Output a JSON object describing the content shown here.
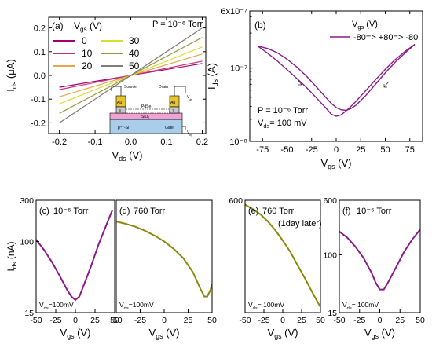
{
  "chart_data": [
    {
      "panel": "(a)",
      "type": "line",
      "annotation": "P = 10⁻⁶ Torr",
      "xlabel": "V",
      "xlabel_sub": "ds",
      "xlabel_unit": " (V)",
      "ylabel": "I",
      "ylabel_sub": "ds",
      "ylabel_unit": " (μA)",
      "xlim": [
        -0.23,
        0.21
      ],
      "ylim": [
        -0.245,
        0.245
      ],
      "xticks": [
        -0.2,
        -0.1,
        0.0,
        0.1,
        0.2
      ],
      "xtick_labels": [
        "-0.2",
        "-0.1",
        "0.0",
        "0.1",
        "0.2"
      ],
      "yticks": [
        -0.2,
        -0.1,
        0.0,
        0.1,
        0.2
      ],
      "ytick_labels": [
        "-0.2",
        "-0.1",
        "0.0",
        "0.1",
        "0.2"
      ],
      "legend_title": "V",
      "legend_title_sub": "gs",
      "legend_title_unit": " (V)",
      "series": [
        {
          "name": "0",
          "color": "#a0006e",
          "x": [
            -0.2,
            0.2
          ],
          "y": [
            -0.05,
            0.05
          ]
        },
        {
          "name": "10",
          "color": "#c5357c",
          "x": [
            -0.2,
            0.2
          ],
          "y": [
            -0.06,
            0.06
          ]
        },
        {
          "name": "20",
          "color": "#e6a64a",
          "x": [
            -0.2,
            0.2
          ],
          "y": [
            -0.09,
            0.09
          ]
        },
        {
          "name": "30",
          "color": "#d7df2a",
          "x": [
            -0.2,
            0.2
          ],
          "y": [
            -0.12,
            0.12
          ]
        },
        {
          "name": "40",
          "color": "#98993e",
          "x": [
            -0.2,
            0.2
          ],
          "y": [
            -0.16,
            0.16
          ]
        },
        {
          "name": "50",
          "color": "#7d7d7d",
          "x": [
            -0.2,
            0.2
          ],
          "y": [
            -0.2,
            0.2
          ]
        }
      ],
      "inset": {
        "source": "Source",
        "drain": "Drain",
        "au": "Au",
        "ti": "Ti",
        "film": "PdSe₂",
        "sio2": "SiO₂",
        "substrate": "p⁺⁺-Si",
        "gate": "Gate",
        "vds": "V",
        "vds_sub": "ds",
        "vbg": "V",
        "vbg_sub": "bg"
      }
    },
    {
      "panel": "(b)",
      "type": "line",
      "yscale": "log",
      "legend_title": "V",
      "legend_title_sub": "gs",
      "legend_title_unit": " (V)",
      "legend_entry": "-80=> +80=> -80",
      "annotation_p": "P = 10⁻⁶ Torr",
      "annotation_v": "V",
      "annotation_v_sub": "ds",
      "annotation_v_rest": "= 100 mV",
      "xlabel": "V",
      "xlabel_sub": "gs",
      "xlabel_unit": " (V)",
      "ylabel": "I",
      "ylabel_sub": "ds",
      "ylabel_unit": " (A)",
      "xlim": [
        -88,
        88
      ],
      "ylim": [
        1e-08,
        6e-07
      ],
      "xticks": [
        -75,
        -50,
        -25,
        0,
        25,
        50,
        75
      ],
      "xtick_labels": [
        "-75",
        "-50",
        "-25",
        "0",
        "25",
        "50",
        "75"
      ],
      "yticks": [
        1e-08,
        1e-07,
        6e-07
      ],
      "ytick_labels": [
        "10⁻⁸",
        "10⁻⁷",
        "6x10⁻⁷"
      ],
      "series": [
        {
          "name": "-80 to +80",
          "color": "#8b1a8b",
          "x": [
            -80,
            -70,
            -60,
            -50,
            -40,
            -30,
            -20,
            -10,
            -5,
            0,
            5,
            10,
            15,
            20,
            30,
            40,
            50,
            60,
            70,
            80
          ],
          "y": [
            2e-07,
            1.6e-07,
            1.25e-07,
            9.5e-08,
            7.2e-08,
            5.4e-08,
            3.9e-08,
            2.8e-08,
            2.35e-08,
            2.2e-08,
            2.3e-08,
            2.6e-08,
            3e-08,
            3.5e-08,
            4.9e-08,
            6.9e-08,
            9.6e-08,
            1.3e-07,
            1.68e-07,
            2.1e-07
          ]
        },
        {
          "name": "+80 to -80",
          "color": "#8b1a8b",
          "x": [
            80,
            70,
            60,
            50,
            40,
            30,
            20,
            15,
            10,
            5,
            0,
            -5,
            -10,
            -20,
            -30,
            -40,
            -50,
            -60,
            -70,
            -80
          ],
          "y": [
            2.1e-07,
            1.6e-07,
            1.2e-07,
            8.6e-08,
            6e-08,
            4.2e-08,
            3.1e-08,
            2.8e-08,
            2.65e-08,
            2.7e-08,
            2.9e-08,
            3.3e-08,
            3.9e-08,
            5.5e-08,
            7.7e-08,
            1.03e-07,
            1.32e-07,
            1.62e-07,
            1.85e-07,
            2e-07
          ]
        }
      ]
    },
    {
      "panel": "(c)",
      "type": "line",
      "yscale": "log",
      "annotation": "10⁻⁶ Torr",
      "vds_label": "V",
      "vds_sub": "ds",
      "vds_value": "=100mV",
      "xlabel": "V",
      "xlabel_sub": "gs",
      "xlabel_unit": " (V)",
      "ylabel": "I",
      "ylabel_sub": "ds",
      "ylabel_unit": " (nA)",
      "xlim": [
        -50,
        50
      ],
      "ylim": [
        15,
        300
      ],
      "xticks": [
        -50,
        -25,
        0,
        25,
        50
      ],
      "xtick_labels": [
        "-50",
        "-25",
        "0",
        "25",
        "50"
      ],
      "yticks": [
        15,
        100,
        300
      ],
      "ytick_labels": [
        "15",
        "100",
        "300"
      ],
      "series": [
        {
          "name": "10⁻⁶ Torr",
          "color": "#8b1a8b",
          "x": [
            -50,
            -40,
            -30,
            -20,
            -10,
            -5,
            0,
            5,
            10,
            20,
            30,
            40,
            47
          ],
          "y": [
            105,
            80,
            58,
            40,
            27,
            23,
            21,
            23,
            30,
            52,
            95,
            160,
            230
          ]
        }
      ]
    },
    {
      "panel": "(d)",
      "type": "line",
      "yscale": "log",
      "annotation": "760 Torr",
      "vds_label": "V",
      "vds_sub": "ds",
      "vds_value": "=100mV",
      "xlabel": "V",
      "xlabel_sub": "gs",
      "xlabel_unit": " (V)",
      "xlim": [
        -50,
        50
      ],
      "ylim": [
        15,
        300
      ],
      "xticks": [
        -50,
        -25,
        0,
        25,
        50
      ],
      "xtick_labels": [
        "-50",
        "-25",
        "0",
        "25",
        "50"
      ],
      "series": [
        {
          "name": "760 Torr",
          "color": "#8a8a0a",
          "x": [
            -50,
            -40,
            -30,
            -20,
            -10,
            0,
            10,
            20,
            30,
            38,
            42,
            45,
            48,
            50
          ],
          "y": [
            170,
            160,
            148,
            133,
            117,
            100,
            82,
            64,
            44,
            28,
            23,
            23,
            27,
            32
          ]
        }
      ]
    },
    {
      "panel": "(e)",
      "type": "line",
      "yscale": "log",
      "annotation": "760 Torr",
      "annotation_2": "(1day later)",
      "vds_label": "V",
      "vds_sub": "ds",
      "vds_value": "= 100mV",
      "xlabel": "V",
      "xlabel_sub": "gs",
      "xlabel_unit": " (V)",
      "xlim": [
        -50,
        50
      ],
      "ylim": [
        15,
        600
      ],
      "xticks": [
        -50,
        -25,
        0,
        25,
        50
      ],
      "xtick_labels": [
        "-50",
        "-25",
        "0",
        "25",
        "50"
      ],
      "yticks": [
        600
      ],
      "ytick_labels": [
        "600"
      ],
      "series": [
        {
          "name": "760 Torr (1day later)",
          "color": "#8a8a0a",
          "x": [
            -50,
            -40,
            -30,
            -20,
            -10,
            0,
            10,
            20,
            30,
            40,
            50
          ],
          "y": [
            520,
            450,
            380,
            300,
            225,
            160,
            110,
            70,
            45,
            28,
            18
          ]
        }
      ]
    },
    {
      "panel": "(f)",
      "type": "line",
      "yscale": "log",
      "annotation": "10⁻⁶ Torr",
      "vds_label": "V",
      "vds_sub": "ds",
      "vds_value": "= 100mV",
      "xlabel": "V",
      "xlabel_sub": "gs",
      "xlabel_unit": " (V)",
      "xlim": [
        -50,
        50
      ],
      "ylim": [
        15,
        600
      ],
      "xticks": [
        -50,
        -25,
        0,
        25,
        50
      ],
      "xtick_labels": [
        "-50",
        "-25",
        "0",
        "25",
        "50"
      ],
      "yticks": [
        15,
        100,
        600
      ],
      "ytick_labels": [
        "15",
        "100",
        "600"
      ],
      "series": [
        {
          "name": "10⁻⁶ Torr",
          "color": "#8b1a8b",
          "x": [
            -50,
            -40,
            -30,
            -20,
            -10,
            -5,
            0,
            5,
            10,
            20,
            30,
            40,
            50
          ],
          "y": [
            215,
            175,
            130,
            90,
            55,
            40,
            32,
            32,
            40,
            66,
            110,
            165,
            230
          ]
        }
      ]
    }
  ]
}
